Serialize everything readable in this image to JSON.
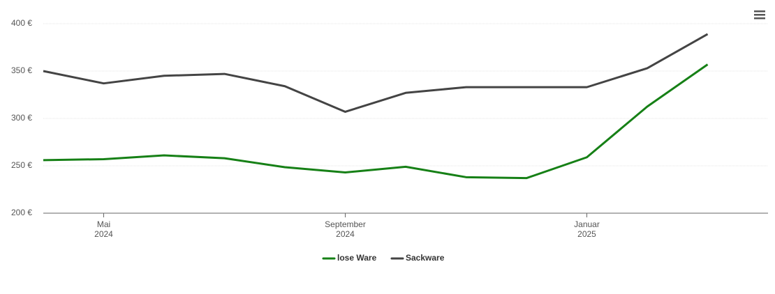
{
  "chart_data": {
    "type": "line",
    "x": [
      "2024-04",
      "2024-05",
      "2024-06",
      "2024-07",
      "2024-08",
      "2024-09",
      "2024-10",
      "2024-11",
      "2024-12",
      "2025-01",
      "2025-02",
      "2025-03"
    ],
    "series": [
      {
        "name": "lose Ware",
        "color": "#168016",
        "values": [
          256,
          257,
          261,
          258,
          248.5,
          243,
          249,
          238,
          237,
          259,
          312.5,
          357
        ]
      },
      {
        "name": "Sackware",
        "color": "#444444",
        "values": [
          350,
          337,
          345,
          347,
          334,
          307,
          327,
          333,
          333,
          333,
          353,
          389
        ]
      }
    ],
    "xlim": [
      "2024-04",
      "2025-04"
    ],
    "xticks": [
      {
        "value": "2024-05",
        "label": [
          "Mai",
          "2024"
        ]
      },
      {
        "value": "2024-09",
        "label": [
          "September",
          "2024"
        ]
      },
      {
        "value": "2025-01",
        "label": [
          "Januar",
          "2025"
        ]
      }
    ],
    "ylim": [
      200,
      400
    ],
    "yticks": [
      {
        "value": 200,
        "label": "200 €"
      },
      {
        "value": 250,
        "label": "250 €"
      },
      {
        "value": 300,
        "label": "300 €"
      },
      {
        "value": 350,
        "label": "350 €"
      },
      {
        "value": 400,
        "label": "400 €"
      }
    ],
    "grid": true,
    "legend": "bottom"
  }
}
